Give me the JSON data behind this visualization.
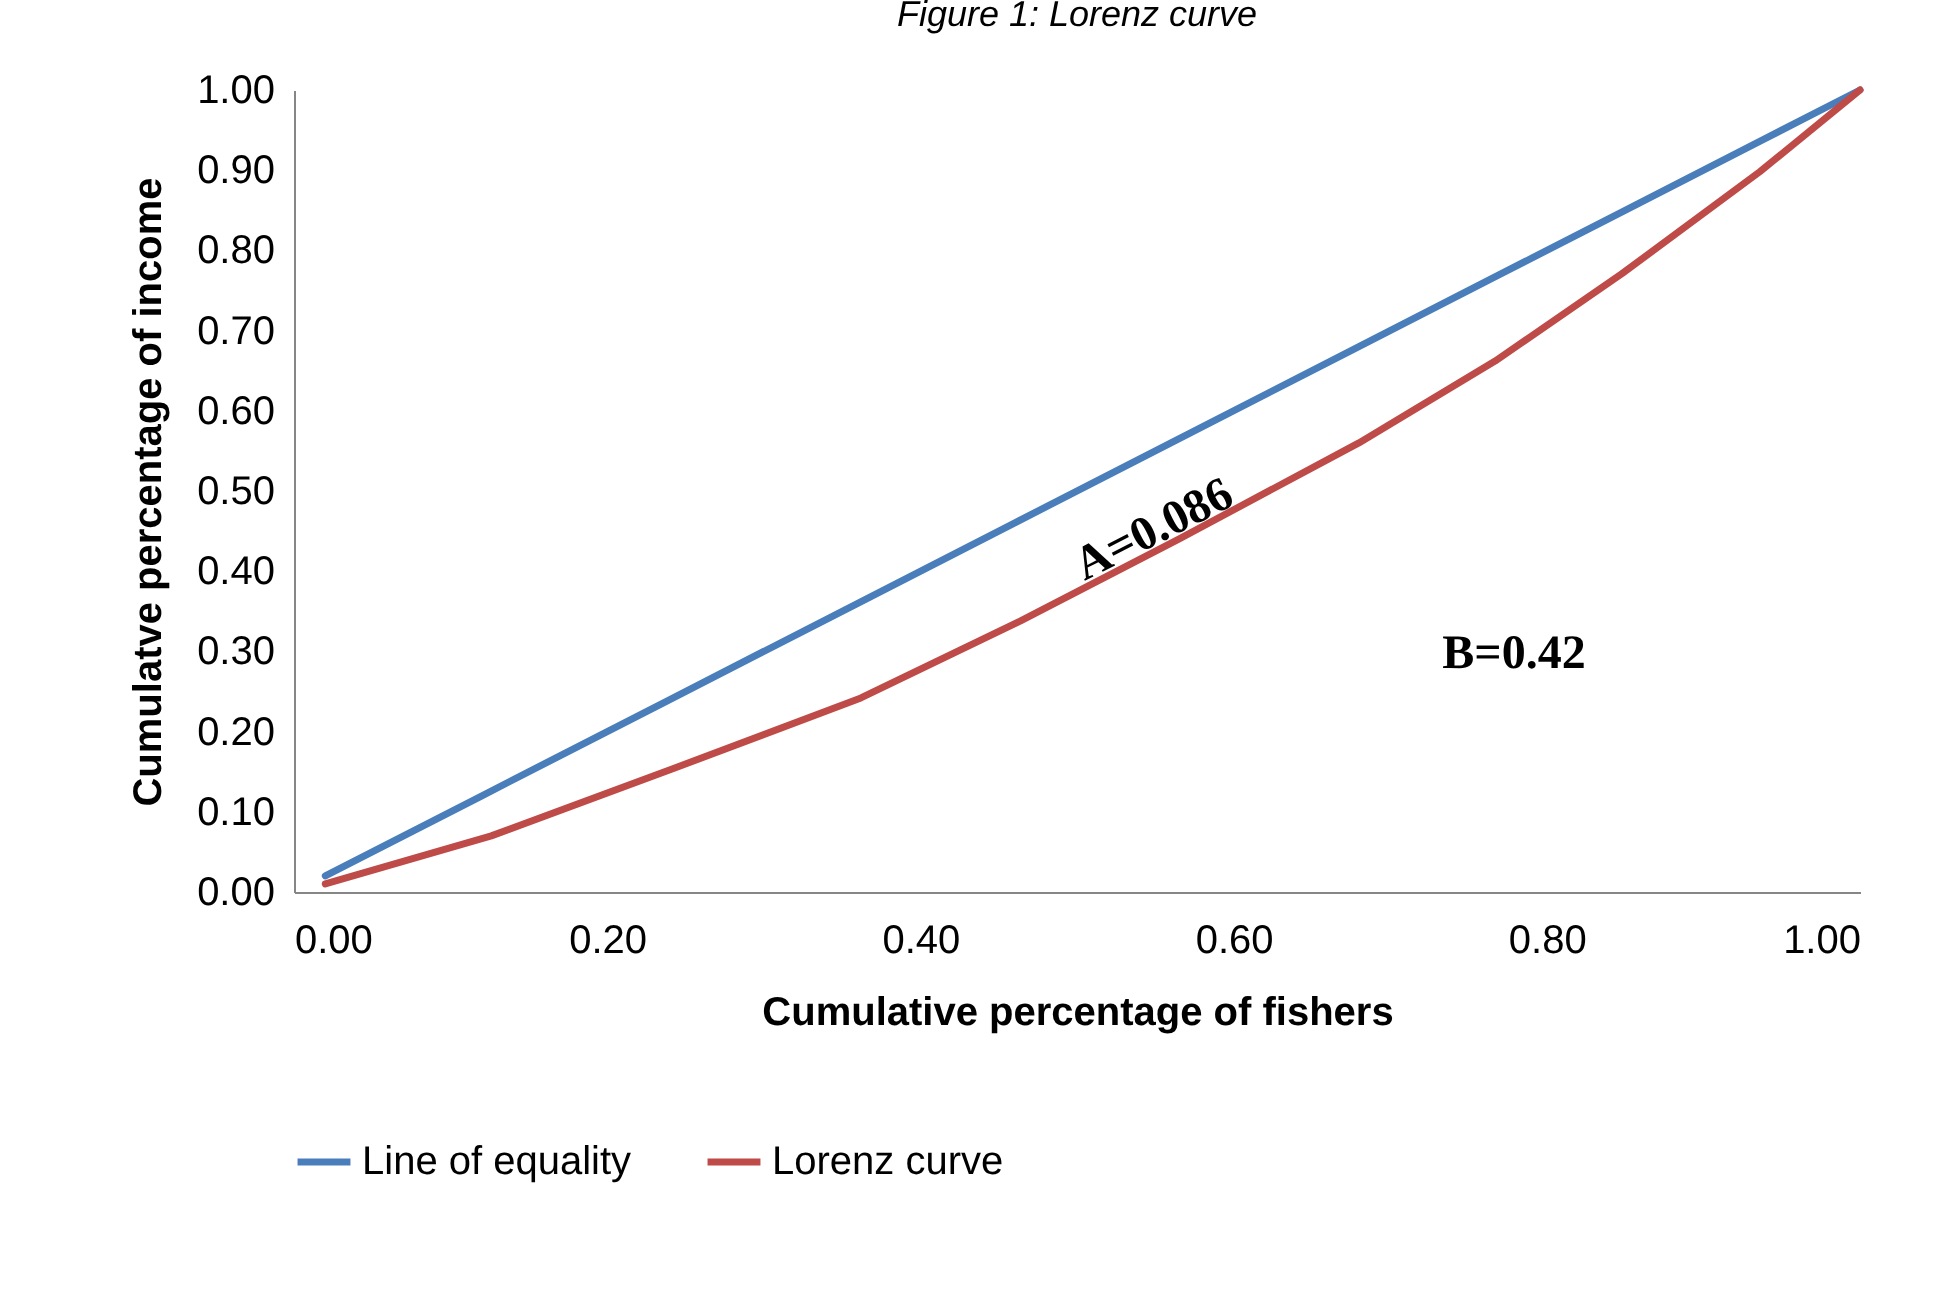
{
  "chart_data": {
    "type": "line",
    "title": "Figure 1: Lorenz curve",
    "xlabel": "Cumulative percentage of fishers",
    "ylabel": "Cumulatve percentage of income",
    "xlim": [
      0,
      1
    ],
    "ylim": [
      0,
      1
    ],
    "xticks": [
      {
        "value": 0,
        "label": "0.00"
      },
      {
        "value": 0.2,
        "label": "0.20"
      },
      {
        "value": 0.4,
        "label": "0.40"
      },
      {
        "value": 0.6,
        "label": "0.60"
      },
      {
        "value": 0.8,
        "label": "0.80"
      },
      {
        "value": 1,
        "label": "1.00"
      }
    ],
    "yticks": [
      {
        "value": 0,
        "label": "0.00"
      },
      {
        "value": 0.1,
        "label": "0.10"
      },
      {
        "value": 0.2,
        "label": "0.20"
      },
      {
        "value": 0.3,
        "label": "0.30"
      },
      {
        "value": 0.4,
        "label": "0.40"
      },
      {
        "value": 0.5,
        "label": "0.50"
      },
      {
        "value": 0.6,
        "label": "0.60"
      },
      {
        "value": 0.7,
        "label": "0.70"
      },
      {
        "value": 0.8,
        "label": "0.80"
      },
      {
        "value": 0.9,
        "label": "0.90"
      },
      {
        "value": 1,
        "label": "1.00"
      }
    ],
    "series": [
      {
        "name": "Line of equality",
        "color": "#4a7ebb",
        "x": [
          0.02,
          0.12,
          0.24,
          0.36,
          0.46,
          0.56,
          0.68,
          0.77,
          0.85,
          0.94,
          1.0
        ],
        "values": [
          0.02,
          0.12,
          0.24,
          0.36,
          0.46,
          0.56,
          0.68,
          0.77,
          0.85,
          0.94,
          1.0
        ]
      },
      {
        "name": "Lorenz curve",
        "color": "#be4b48",
        "x": [
          0.02,
          0.126,
          0.241,
          0.362,
          0.464,
          0.565,
          0.68,
          0.767,
          0.848,
          0.936,
          1.0
        ],
        "values": [
          0.01,
          0.07,
          0.153,
          0.242,
          0.338,
          0.44,
          0.56,
          0.662,
          0.771,
          0.898,
          1.0
        ]
      }
    ],
    "annotations": [
      "A=0.086",
      "B=0.42"
    ],
    "grid": false,
    "legend": "bottom",
    "marker": "none",
    "line_style": "solid"
  }
}
